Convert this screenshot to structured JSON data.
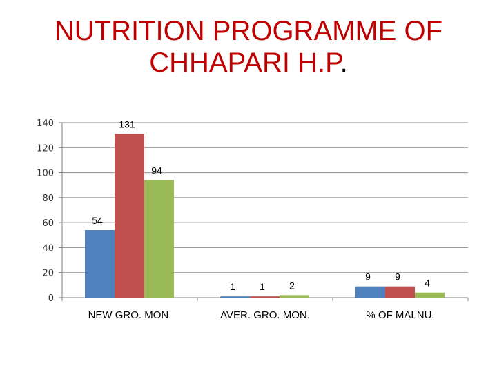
{
  "title_line1": "NUTRITION PROGRAMME OF",
  "title_line2": "CHHAPARI  H.P",
  "title_dot": ".",
  "chart_data": {
    "type": "bar",
    "categories": [
      "NEW GRO. MON.",
      "AVER. GRO. MON.",
      "% OF MALNU."
    ],
    "series": [
      {
        "values": [
          54,
          1,
          9
        ],
        "color": "#4f81bd"
      },
      {
        "values": [
          131,
          1,
          9
        ],
        "color": "#c0504d"
      },
      {
        "values": [
          94,
          2,
          4
        ],
        "color": "#9bbb59"
      }
    ],
    "ylim": [
      0,
      140
    ],
    "yticks": [
      0,
      20,
      40,
      60,
      80,
      100,
      120,
      140
    ],
    "grid": true
  }
}
